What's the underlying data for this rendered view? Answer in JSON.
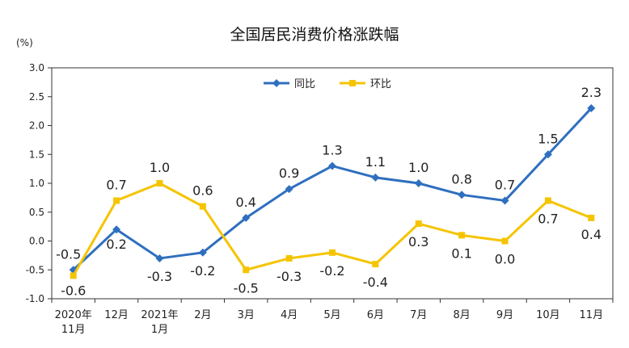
{
  "chart_data": {
    "type": "line",
    "title": "全国居民消费价格涨跌幅",
    "ylabel": "(%)",
    "ylim": [
      -1.0,
      3.0
    ],
    "yticks": [
      "3.0",
      "2.5",
      "2.0",
      "1.5",
      "1.0",
      "0.5",
      "0.0",
      "-0.5",
      "-1.0"
    ],
    "categories": [
      [
        "2020年",
        "11月"
      ],
      [
        "12月"
      ],
      [
        "2021年",
        "1月"
      ],
      [
        "2月"
      ],
      [
        "3月"
      ],
      [
        "4月"
      ],
      [
        "5月"
      ],
      [
        "6月"
      ],
      [
        "7月"
      ],
      [
        "8月"
      ],
      [
        "9月"
      ],
      [
        "10月"
      ],
      [
        "11月"
      ]
    ],
    "series": [
      {
        "name": "同比",
        "color": "#2f6fbf",
        "marker": "diamond",
        "values": [
          -0.5,
          0.2,
          -0.3,
          -0.2,
          0.4,
          0.9,
          1.3,
          1.1,
          1.0,
          0.8,
          0.7,
          1.5,
          2.3
        ],
        "labels": [
          "-0.5",
          "0.2",
          "-0.3",
          "-0.2",
          "0.4",
          "0.9",
          "1.3",
          "1.1",
          "1.0",
          "0.8",
          "0.7",
          "1.5",
          "2.3"
        ]
      },
      {
        "name": "环比",
        "color": "#f5c400",
        "marker": "square",
        "values": [
          -0.6,
          0.7,
          1.0,
          0.6,
          -0.5,
          -0.3,
          -0.2,
          -0.4,
          0.3,
          0.1,
          0.0,
          0.7,
          0.4
        ],
        "labels": [
          "-0.6",
          "0.7",
          "1.0",
          "0.6",
          "-0.5",
          "-0.3",
          "-0.2",
          "-0.4",
          "0.3",
          "0.1",
          "0.0",
          "0.7",
          "0.4"
        ]
      }
    ],
    "legend_position": "top-center",
    "grid": false
  }
}
